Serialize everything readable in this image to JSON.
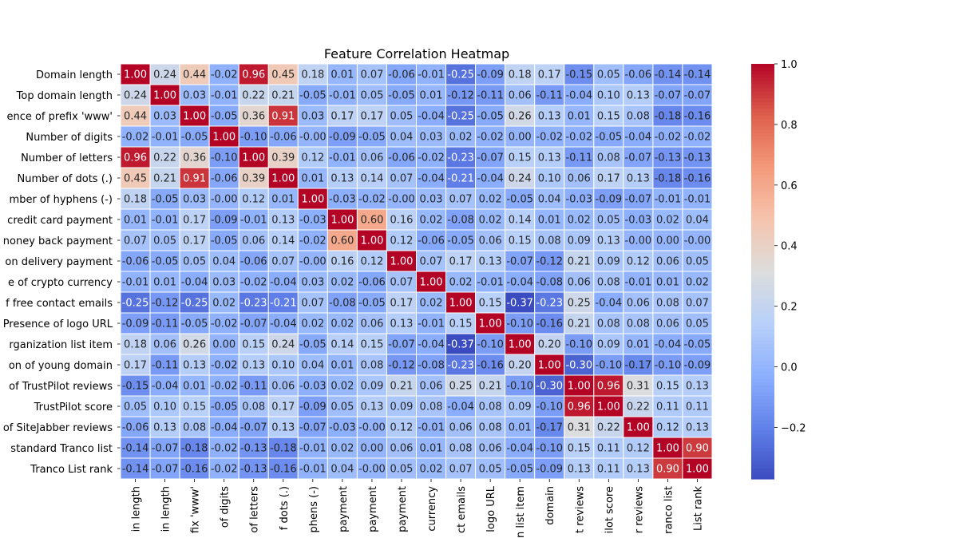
{
  "chart_data": {
    "type": "heatmap",
    "title": "Feature Correlation Heatmap",
    "colormap": "coolwarm",
    "vmin": -0.37,
    "vmax": 1.0,
    "colorbar_ticks": [
      -0.2,
      0.0,
      0.2,
      0.4,
      0.6,
      0.8,
      1.0
    ],
    "colorbar_tick_labels": [
      "−0.2",
      "0.0",
      "0.2",
      "0.4",
      "0.6",
      "0.8",
      "1.0"
    ],
    "row_labels": [
      "Domain length",
      "Top domain length",
      "ence of prefix 'www'",
      "Number  of digits",
      "Number  of letters",
      "Number  of dots (.)",
      "mber  of hyphens (-)",
      "credit card payment",
      "noney back payment",
      "on delivery payment",
      "e of crypto currency",
      "f free contact emails",
      "Presence of logo URL",
      "rganization list item",
      "on of young domain",
      "of TrustPilot reviews",
      "TrustPilot score",
      "of SiteJabber reviews",
      "standard Tranco list",
      "Tranco List rank"
    ],
    "col_labels": [
      "in length",
      "in length",
      "fix 'www'",
      "of digits",
      "of letters",
      "f dots (.)",
      "phens (-)",
      "payment",
      "payment",
      "payment",
      "currency",
      "ct emails",
      "logo URL",
      "n list item",
      "domain",
      "t reviews",
      "ilot score",
      "r reviews",
      "ranco list",
      "List rank"
    ],
    "values": [
      [
        "1.00",
        "0.24",
        "0.44",
        "-0.02",
        "0.96",
        "0.45",
        "0.18",
        "0.01",
        "0.07",
        "-0.06",
        "-0.01",
        "-0.25",
        "-0.09",
        "0.18",
        "0.17",
        "-0.15",
        "0.05",
        "-0.06",
        "-0.14",
        "-0.14"
      ],
      [
        "0.24",
        "1.00",
        "0.03",
        "-0.01",
        "0.22",
        "0.21",
        "-0.05",
        "-0.01",
        "0.05",
        "-0.05",
        "0.01",
        "-0.12",
        "-0.11",
        "0.06",
        "-0.11",
        "-0.04",
        "0.10",
        "0.13",
        "-0.07",
        "-0.07"
      ],
      [
        "0.44",
        "0.03",
        "1.00",
        "-0.05",
        "0.36",
        "0.91",
        "0.03",
        "0.17",
        "0.17",
        "0.05",
        "-0.04",
        "-0.25",
        "-0.05",
        "0.26",
        "0.13",
        "0.01",
        "0.15",
        "0.08",
        "-0.18",
        "-0.16"
      ],
      [
        "-0.02",
        "-0.01",
        "-0.05",
        "1.00",
        "-0.10",
        "-0.06",
        "-0.00",
        "-0.09",
        "-0.05",
        "0.04",
        "0.03",
        "0.02",
        "-0.02",
        "0.00",
        "-0.02",
        "-0.02",
        "-0.05",
        "-0.04",
        "-0.02",
        "-0.02"
      ],
      [
        "0.96",
        "0.22",
        "0.36",
        "-0.10",
        "1.00",
        "0.39",
        "0.12",
        "-0.01",
        "0.06",
        "-0.06",
        "-0.02",
        "-0.23",
        "-0.07",
        "0.15",
        "0.13",
        "-0.11",
        "0.08",
        "-0.07",
        "-0.13",
        "-0.13"
      ],
      [
        "0.45",
        "0.21",
        "0.91",
        "-0.06",
        "0.39",
        "1.00",
        "0.01",
        "0.13",
        "0.14",
        "0.07",
        "-0.04",
        "-0.21",
        "-0.04",
        "0.24",
        "0.10",
        "0.06",
        "0.17",
        "0.13",
        "-0.18",
        "-0.16"
      ],
      [
        "0.18",
        "-0.05",
        "0.03",
        "-0.00",
        "0.12",
        "0.01",
        "1.00",
        "-0.03",
        "-0.02",
        "-0.00",
        "0.03",
        "0.07",
        "0.02",
        "-0.05",
        "0.04",
        "-0.03",
        "-0.09",
        "-0.07",
        "-0.01",
        "-0.01"
      ],
      [
        "0.01",
        "-0.01",
        "0.17",
        "-0.09",
        "-0.01",
        "0.13",
        "-0.03",
        "1.00",
        "0.60",
        "0.16",
        "0.02",
        "-0.08",
        "0.02",
        "0.14",
        "0.01",
        "0.02",
        "0.05",
        "-0.03",
        "0.02",
        "0.04"
      ],
      [
        "0.07",
        "0.05",
        "0.17",
        "-0.05",
        "0.06",
        "0.14",
        "-0.02",
        "0.60",
        "1.00",
        "0.12",
        "-0.06",
        "-0.05",
        "0.06",
        "0.15",
        "0.08",
        "0.09",
        "0.13",
        "-0.00",
        "0.00",
        "-0.00"
      ],
      [
        "-0.06",
        "-0.05",
        "0.05",
        "0.04",
        "-0.06",
        "0.07",
        "-0.00",
        "0.16",
        "0.12",
        "1.00",
        "0.07",
        "0.17",
        "0.13",
        "-0.07",
        "-0.12",
        "0.21",
        "0.09",
        "0.12",
        "0.06",
        "0.05"
      ],
      [
        "-0.01",
        "0.01",
        "-0.04",
        "0.03",
        "-0.02",
        "-0.04",
        "0.03",
        "0.02",
        "-0.06",
        "0.07",
        "1.00",
        "0.02",
        "-0.01",
        "-0.04",
        "-0.08",
        "0.06",
        "0.08",
        "-0.01",
        "0.01",
        "0.02"
      ],
      [
        "-0.25",
        "-0.12",
        "-0.25",
        "0.02",
        "-0.23",
        "-0.21",
        "0.07",
        "-0.08",
        "-0.05",
        "0.17",
        "0.02",
        "1.00",
        "0.15",
        "-0.37",
        "-0.23",
        "0.25",
        "-0.04",
        "0.06",
        "0.08",
        "0.07"
      ],
      [
        "-0.09",
        "-0.11",
        "-0.05",
        "-0.02",
        "-0.07",
        "-0.04",
        "0.02",
        "0.02",
        "0.06",
        "0.13",
        "-0.01",
        "0.15",
        "1.00",
        "-0.10",
        "-0.16",
        "0.21",
        "0.08",
        "0.08",
        "0.06",
        "0.05"
      ],
      [
        "0.18",
        "0.06",
        "0.26",
        "0.00",
        "0.15",
        "0.24",
        "-0.05",
        "0.14",
        "0.15",
        "-0.07",
        "-0.04",
        "-0.37",
        "-0.10",
        "1.00",
        "0.20",
        "-0.10",
        "0.09",
        "0.01",
        "-0.04",
        "-0.05"
      ],
      [
        "0.17",
        "-0.11",
        "0.13",
        "-0.02",
        "0.13",
        "0.10",
        "0.04",
        "0.01",
        "0.08",
        "-0.12",
        "-0.08",
        "-0.23",
        "-0.16",
        "0.20",
        "1.00",
        "-0.30",
        "-0.10",
        "-0.17",
        "-0.10",
        "-0.09"
      ],
      [
        "-0.15",
        "-0.04",
        "0.01",
        "-0.02",
        "-0.11",
        "0.06",
        "-0.03",
        "0.02",
        "0.09",
        "0.21",
        "0.06",
        "0.25",
        "0.21",
        "-0.10",
        "-0.30",
        "1.00",
        "0.96",
        "0.31",
        "0.15",
        "0.13"
      ],
      [
        "0.05",
        "0.10",
        "0.15",
        "-0.05",
        "0.08",
        "0.17",
        "-0.09",
        "0.05",
        "0.13",
        "0.09",
        "0.08",
        "-0.04",
        "0.08",
        "0.09",
        "-0.10",
        "0.96",
        "1.00",
        "0.22",
        "0.11",
        "0.11"
      ],
      [
        "-0.06",
        "0.13",
        "0.08",
        "-0.04",
        "-0.07",
        "0.13",
        "-0.07",
        "-0.03",
        "-0.00",
        "0.12",
        "-0.01",
        "0.06",
        "0.08",
        "0.01",
        "-0.17",
        "0.31",
        "0.22",
        "1.00",
        "0.12",
        "0.13"
      ],
      [
        "-0.14",
        "-0.07",
        "-0.18",
        "-0.02",
        "-0.13",
        "-0.18",
        "-0.01",
        "0.02",
        "0.00",
        "0.06",
        "0.01",
        "0.08",
        "0.06",
        "-0.04",
        "-0.10",
        "0.15",
        "0.11",
        "0.12",
        "1.00",
        "0.90"
      ],
      [
        "-0.14",
        "-0.07",
        "-0.16",
        "-0.02",
        "-0.13",
        "-0.16",
        "-0.01",
        "0.04",
        "-0.00",
        "0.05",
        "0.02",
        "0.07",
        "0.05",
        "-0.05",
        "-0.09",
        "0.13",
        "0.11",
        "0.13",
        "0.90",
        "1.00"
      ]
    ]
  }
}
